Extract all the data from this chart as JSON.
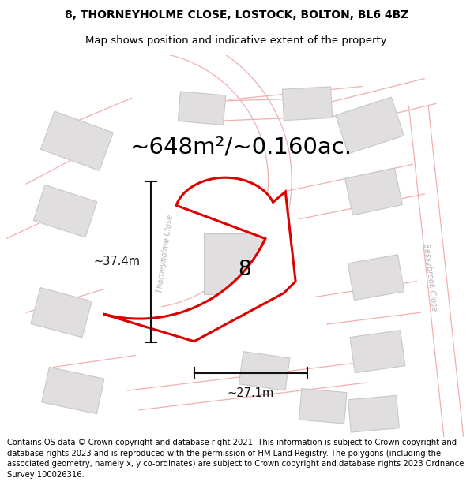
{
  "title_line1": "8, THORNEYHOLME CLOSE, LOSTOCK, BOLTON, BL6 4BZ",
  "title_line2": "Map shows position and indicative extent of the property.",
  "area_text": "~648m²/~0.160ac.",
  "width_label": "~27.1m",
  "height_label": "~37.4m",
  "property_number": "8",
  "road_label": "Thorneyholme Close",
  "road_label2": "Bessybrook Close",
  "footer_text": "Contains OS data © Crown copyright and database right 2021. This information is subject to Crown copyright and database rights 2023 and is reproduced with the permission of HM Land Registry. The polygons (including the associated geometry, namely x, y co-ordinates) are subject to Crown copyright and database rights 2023 Ordnance Survey 100026316.",
  "bg_color": "#ffffff",
  "map_bg": "#faf6f6",
  "property_fill": "#ffffff",
  "property_edge": "#dd0000",
  "road_color": "#f0b0b0",
  "building_fill": "#e0dede",
  "building_edge": "#c8c8c8",
  "dim_color": "#111111",
  "area_fontsize": 21,
  "title_fontsize": 10,
  "footer_fontsize": 7.2
}
